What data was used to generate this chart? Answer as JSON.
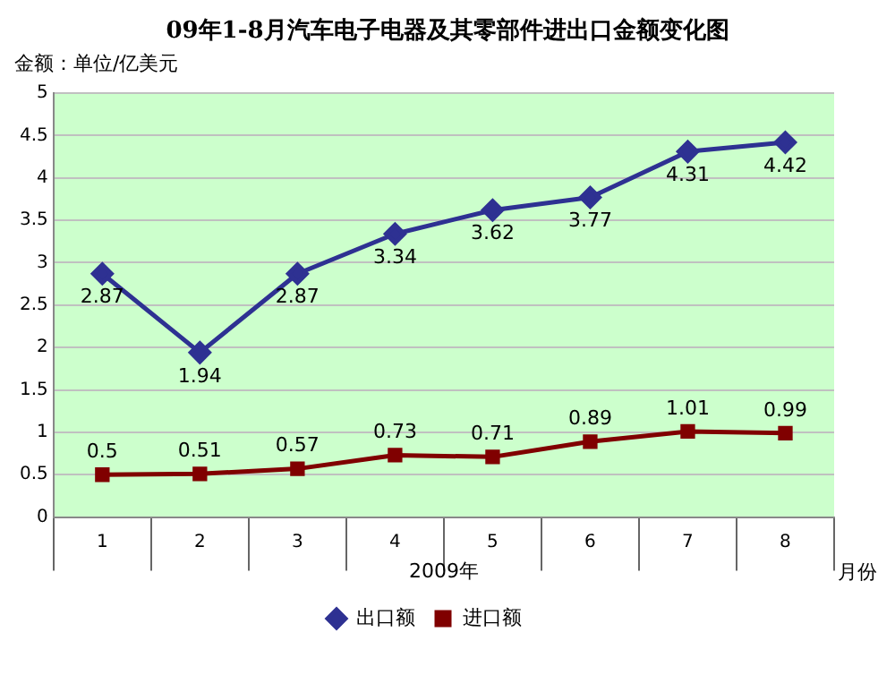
{
  "chart_data": {
    "type": "line",
    "title": "09年1-8月汽车电子电器及其零部件进出口金额变化图",
    "ylabel": "金额：单位/亿美元",
    "xlabel": "2009年",
    "annotations": [
      "月份"
    ],
    "categories": [
      "1",
      "2",
      "3",
      "4",
      "5",
      "6",
      "7",
      "8"
    ],
    "series": [
      {
        "name": "出口额",
        "color": "#2e3192",
        "marker": "diamond",
        "values": [
          2.87,
          1.94,
          2.87,
          3.34,
          3.62,
          3.77,
          4.31,
          4.42
        ]
      },
      {
        "name": "进口额",
        "color": "#800000",
        "marker": "square",
        "values": [
          0.5,
          0.51,
          0.57,
          0.73,
          0.71,
          0.89,
          1.01,
          0.99
        ]
      }
    ],
    "ylim": [
      0,
      5
    ],
    "yticks": [
      0,
      0.5,
      1,
      1.5,
      2,
      2.5,
      3,
      3.5,
      4,
      4.5,
      5
    ],
    "grid": "y",
    "legend": "bottom",
    "data_labels": true,
    "line_style": "solid"
  }
}
